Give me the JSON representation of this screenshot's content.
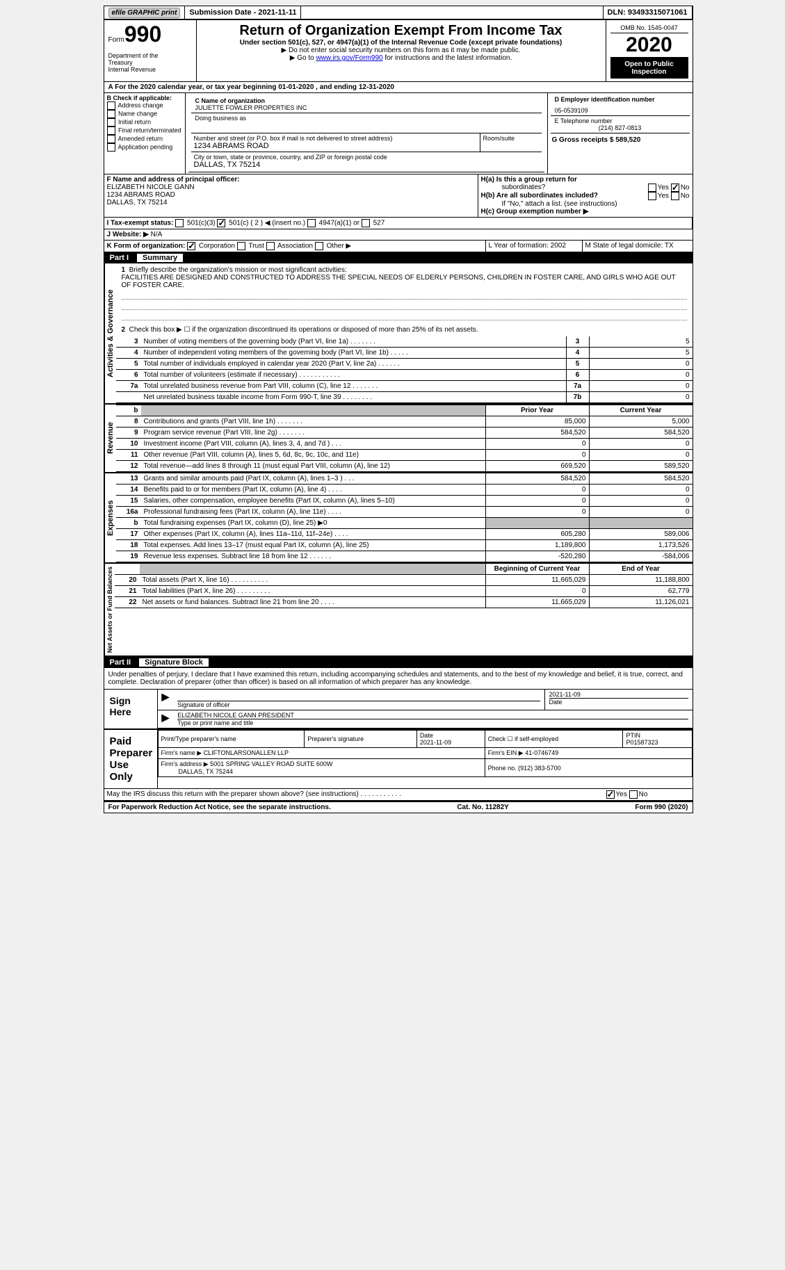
{
  "topbar": {
    "efile_label": "efile GRAPHIC print",
    "submission_date_label": "Submission Date - 2021-11-11",
    "dln_label": "DLN: 93493315071061"
  },
  "header": {
    "form_label": "Form",
    "form_num": "990",
    "dept1": "Department of the",
    "dept2": "Treasury",
    "dept3": "Internal Revenue",
    "title": "Return of Organization Exempt From Income Tax",
    "subtitle": "Under section 501(c), 527, or 4947(a)(1) of the Internal Revenue Code (except private foundations)",
    "hint1_prefix": "▶ Do not enter social security numbers on this form as it may be made public.",
    "hint2_prefix": "▶ Go to ",
    "hint2_link": "www.irs.gov/Form990",
    "hint2_suffix": " for instructions and the latest information.",
    "omb": "OMB No. 1545-0047",
    "year": "2020",
    "inspection": "Open to Public Inspection"
  },
  "section_a": {
    "text": "A For the 2020 calendar year, or tax year beginning 01-01-2020   , and ending 12-31-2020"
  },
  "section_b": {
    "label": "B Check if applicable:",
    "options": [
      "Address change",
      "Name change",
      "Initial return",
      "Final return/terminated",
      "Amended return",
      "Application pending"
    ]
  },
  "section_c": {
    "name_label": "C Name of organization",
    "name_value": "JULIETTE FOWLER PROPERTIES INC",
    "dba_label": "Doing business as",
    "street_label": "Number and street (or P.O. box if mail is not delivered to street address)",
    "room_label": "Room/suite",
    "street_value": "1234 ABRAMS ROAD",
    "city_label": "City or town, state or province, country, and ZIP or foreign postal code",
    "city_value": "DALLAS, TX  75214"
  },
  "section_d": {
    "ein_label": "D Employer identification number",
    "ein_value": "05-0539109",
    "phone_label": "E Telephone number",
    "phone_value": "(214) 827-0813",
    "receipts_label": "G Gross receipts $ 589,520"
  },
  "section_f": {
    "label": "F  Name and address of principal officer:",
    "name": "ELIZABETH NICOLE GANN",
    "street": "1234 ABRAMS ROAD",
    "city": "DALLAS, TX  75214"
  },
  "section_h": {
    "ha_label": "H(a)  Is this a group return for",
    "ha_sub": "subordinates?",
    "hb_label": "H(b)  Are all subordinates included?",
    "hb_hint": "If \"No,\" attach a list. (see instructions)",
    "hc_label": "H(c)  Group exemption number ▶",
    "yes": "Yes",
    "no": "No"
  },
  "section_i": {
    "label": "I    Tax-exempt status:",
    "opt1": "501(c)(3)",
    "opt2": "501(c) ( 2 ) ◀ (insert no.)",
    "opt3": "4947(a)(1) or",
    "opt4": "527"
  },
  "section_j": {
    "label": "J    Website: ▶",
    "value": "N/A"
  },
  "section_k": {
    "label": "K Form of organization:",
    "opt1": "Corporation",
    "opt2": "Trust",
    "opt3": "Association",
    "opt4": "Other ▶"
  },
  "section_l": {
    "label": "L Year of formation: 2002"
  },
  "section_m": {
    "label": "M State of legal domicile: TX"
  },
  "part1": {
    "num": "Part I",
    "title": "Summary",
    "line1_label": "Briefly describe the organization's mission or most significant activities:",
    "line1_text": "FACILITIES ARE DESIGNED AND CONSTRUCTED TO ADDRESS THE SPECIAL NEEDS OF ELDERLY PERSONS, CHILDREN IN FOSTER CARE, AND GIRLS WHO AGE OUT OF FOSTER CARE.",
    "line2_label": "Check this box ▶ ☐  if the organization discontinued its operations or disposed of more than 25% of its net assets.",
    "prior_year_header": "Prior Year",
    "current_year_header": "Current Year",
    "begin_year_header": "Beginning of Current Year",
    "end_year_header": "End of Year",
    "gov_label": "Activities & Governance",
    "rev_label": "Revenue",
    "exp_label": "Expenses",
    "net_label": "Net Assets or Fund Balances",
    "gov_lines": [
      {
        "n": "3",
        "label": "Number of voting members of the governing body (Part VI, line 1a)   .    .    .    .    .    .    .",
        "box": "3",
        "val": "5"
      },
      {
        "n": "4",
        "label": "Number of independent voting members of the governing body (Part VI, line 1b)    .    .    .    .    .",
        "box": "4",
        "val": "5"
      },
      {
        "n": "5",
        "label": "Total number of individuals employed in calendar year 2020 (Part V, line 2a)   .    .    .    .    .    .",
        "box": "5",
        "val": "0"
      },
      {
        "n": "6",
        "label": "Total number of volunteers (estimate if necessary)   .    .    .    .    .    .    .    .    .    .    .",
        "box": "6",
        "val": "0"
      },
      {
        "n": "7a",
        "label": "Total unrelated business revenue from Part VIII, column (C), line 12   .    .    .    .    .    .    .",
        "box": "7a",
        "val": "0"
      },
      {
        "n": "",
        "label": "Net unrelated business taxable income from Form 990-T, line 39   .    .    .    .    .    .    .    .",
        "box": "7b",
        "val": "0"
      }
    ],
    "rev_lines": [
      {
        "n": "8",
        "label": "Contributions and grants (Part VIII, line 1h)   .    .    .    .    .    .    .",
        "prior": "85,000",
        "curr": "5,000"
      },
      {
        "n": "9",
        "label": "Program service revenue (Part VIII, line 2g)   .    .    .    .    .    .    .",
        "prior": "584,520",
        "curr": "584,520"
      },
      {
        "n": "10",
        "label": "Investment income (Part VIII, column (A), lines 3, 4, and 7d )   .    .    .",
        "prior": "0",
        "curr": "0"
      },
      {
        "n": "11",
        "label": "Other revenue (Part VIII, column (A), lines 5, 6d, 8c, 9c, 10c, and 11e)",
        "prior": "0",
        "curr": "0"
      },
      {
        "n": "12",
        "label": "Total revenue—add lines 8 through 11 (must equal Part VIII, column (A), line 12)",
        "prior": "669,520",
        "curr": "589,520"
      }
    ],
    "exp_lines": [
      {
        "n": "13",
        "label": "Grants and similar amounts paid (Part IX, column (A), lines 1–3 )   .    .    .",
        "prior": "584,520",
        "curr": "584,520"
      },
      {
        "n": "14",
        "label": "Benefits paid to or for members (Part IX, column (A), line 4)   .    .    .    .",
        "prior": "0",
        "curr": "0"
      },
      {
        "n": "15",
        "label": "Salaries, other compensation, employee benefits (Part IX, column (A), lines 5–10)",
        "prior": "0",
        "curr": "0"
      },
      {
        "n": "16a",
        "label": "Professional fundraising fees (Part IX, column (A), line 11e)   .    .    .    .",
        "prior": "0",
        "curr": "0"
      },
      {
        "n": "b",
        "label": "Total fundraising expenses (Part IX, column (D), line 25) ▶0",
        "prior": "",
        "curr": "",
        "shaded": true
      },
      {
        "n": "17",
        "label": "Other expenses (Part IX, column (A), lines 11a–11d, 11f–24e)   .    .    .    .",
        "prior": "605,280",
        "curr": "589,006"
      },
      {
        "n": "18",
        "label": "Total expenses. Add lines 13–17 (must equal Part IX, column (A), line 25)",
        "prior": "1,189,800",
        "curr": "1,173,526"
      },
      {
        "n": "19",
        "label": "Revenue less expenses. Subtract line 18 from line 12 .    .    .    .    .    .",
        "prior": "-520,280",
        "curr": "-584,006"
      }
    ],
    "net_lines": [
      {
        "n": "20",
        "label": "Total assets (Part X, line 16)   .    .    .    .    .    .    .    .    .    .",
        "prior": "11,665,029",
        "curr": "11,188,800"
      },
      {
        "n": "21",
        "label": "Total liabilities (Part X, line 26)   .    .    .    .    .    .    .    .    .",
        "prior": "0",
        "curr": "62,779"
      },
      {
        "n": "22",
        "label": "Net assets or fund balances. Subtract line 21 from line 20 .    .    .    .",
        "prior": "11,665,029",
        "curr": "11,126,021"
      }
    ]
  },
  "part2": {
    "num": "Part II",
    "title": "Signature Block",
    "declaration": "Under penalties of perjury, I declare that I have examined this return, including accompanying schedules and statements, and to the best of my knowledge and belief, it is true, correct, and complete. Declaration of preparer (other than officer) is based on all information of which preparer has any knowledge.",
    "sign_here": "Sign Here",
    "sig_date": "2021-11-09",
    "sig_label": "Signature of officer",
    "date_label": "Date",
    "officer_name": "ELIZABETH NICOLE GANN PRESIDENT",
    "officer_label": "Type or print name and title",
    "paid_label": "Paid Preparer Use Only",
    "prep_name_label": "Print/Type preparer's name",
    "prep_sig_label": "Preparer's signature",
    "prep_date_label": "Date",
    "prep_date": "2021-11-09",
    "check_label": "Check ☐ if self-employed",
    "ptin_label": "PTIN",
    "ptin": "P01587323",
    "firm_name_label": "Firm's name    ▶",
    "firm_name": "CLIFTONLARSONALLEN LLP",
    "firm_ein_label": "Firm's EIN ▶",
    "firm_ein": "41-0746749",
    "firm_addr_label": "Firm's address ▶",
    "firm_addr1": "5001 SPRING VALLEY ROAD SUITE 600W",
    "firm_addr2": "DALLAS, TX  75244",
    "firm_phone_label": "Phone no.",
    "firm_phone": "(912) 383-5700",
    "discuss": "May the IRS discuss this return with the preparer shown above? (see instructions)   .    .    .    .    .    .    .    .    .    .    .",
    "yes": "Yes",
    "no": "No"
  },
  "footer": {
    "left": "For Paperwork Reduction Act Notice, see the separate instructions.",
    "mid": "Cat. No. 11282Y",
    "right": "Form 990 (2020)"
  }
}
